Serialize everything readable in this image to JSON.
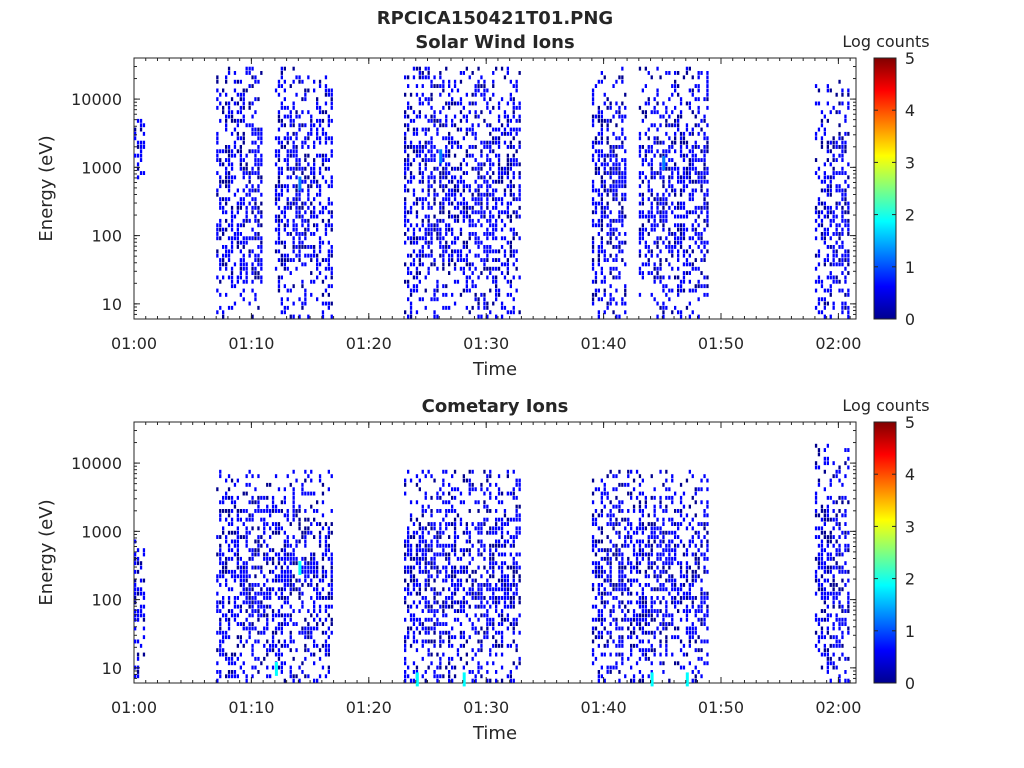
{
  "figure_title": "RPCICA150421T01.PNG",
  "chart_data": [
    {
      "type": "heatmap",
      "title": "Solar Wind Ions",
      "xlabel": "Time",
      "ylabel": "Energy (eV)",
      "x_range": [
        "01:00",
        "02:01"
      ],
      "x_ticks": [
        "01:00",
        "01:10",
        "01:20",
        "01:30",
        "01:40",
        "01:50",
        "02:00"
      ],
      "y_scale": "log",
      "y_range": [
        6,
        40000
      ],
      "y_ticks": [
        "10",
        "100",
        "1000",
        "10000"
      ],
      "colorbar": {
        "label": "Log counts",
        "min": 0,
        "max": 5,
        "ticks": [
          "0",
          "1",
          "2",
          "3",
          "4",
          "5"
        ],
        "colormap": "jet"
      },
      "colormap_colors": [
        "#00008f",
        "#0000ff",
        "#0080ff",
        "#00ffff",
        "#80ff80",
        "#ffff00",
        "#ff8000",
        "#ff0000",
        "#800000"
      ],
      "activity_intervals": [
        {
          "start": "01:00",
          "end": "01:01",
          "energy_range_eV": [
            600,
            5000
          ]
        },
        {
          "start": "01:07",
          "end": "01:11",
          "energy_range_eV": [
            6,
            30000
          ]
        },
        {
          "start": "01:12",
          "end": "01:17",
          "energy_range_eV": [
            6,
            30000
          ]
        },
        {
          "start": "01:23",
          "end": "01:33",
          "energy_range_eV": [
            6,
            30000
          ]
        },
        {
          "start": "01:39",
          "end": "01:42",
          "energy_range_eV": [
            6,
            30000
          ]
        },
        {
          "start": "01:43",
          "end": "01:49",
          "energy_range_eV": [
            6,
            30000
          ]
        },
        {
          "start": "01:58",
          "end": "02:01",
          "energy_range_eV": [
            6,
            20000
          ]
        }
      ],
      "peak_features": [
        {
          "time": "01:14",
          "energy_eV": 600,
          "log_counts": 1.4
        },
        {
          "time": "01:26",
          "energy_eV": 1500,
          "log_counts": 1.5
        },
        {
          "time": "01:45",
          "energy_eV": 1200,
          "log_counts": 1.3
        }
      ]
    },
    {
      "type": "heatmap",
      "title": "Cometary Ions",
      "xlabel": "Time",
      "ylabel": "Energy (eV)",
      "x_range": [
        "01:00",
        "02:01"
      ],
      "x_ticks": [
        "01:00",
        "01:10",
        "01:20",
        "01:30",
        "01:40",
        "01:50",
        "02:00"
      ],
      "y_scale": "log",
      "y_range": [
        6,
        40000
      ],
      "y_ticks": [
        "10",
        "100",
        "1000",
        "10000"
      ],
      "colorbar": {
        "label": "Log counts",
        "min": 0,
        "max": 5,
        "ticks": [
          "0",
          "1",
          "2",
          "3",
          "4",
          "5"
        ],
        "colormap": "jet"
      },
      "colormap_colors": [
        "#00008f",
        "#0000ff",
        "#0080ff",
        "#00ffff",
        "#80ff80",
        "#ffff00",
        "#ff8000",
        "#ff0000",
        "#800000"
      ],
      "activity_intervals": [
        {
          "start": "01:00",
          "end": "01:01",
          "energy_range_eV": [
            6,
            800
          ]
        },
        {
          "start": "01:07",
          "end": "01:17",
          "energy_range_eV": [
            6,
            8000
          ]
        },
        {
          "start": "01:23",
          "end": "01:33",
          "energy_range_eV": [
            6,
            8000
          ]
        },
        {
          "start": "01:39",
          "end": "01:49",
          "energy_range_eV": [
            6,
            8000
          ]
        },
        {
          "start": "01:58",
          "end": "02:01",
          "energy_range_eV": [
            6,
            20000
          ]
        }
      ],
      "peak_features": [
        {
          "time": "01:12",
          "energy_eV": 10,
          "log_counts": 2.0
        },
        {
          "time": "01:14",
          "energy_eV": 300,
          "log_counts": 1.6
        },
        {
          "time": "01:24",
          "energy_eV": 7,
          "log_counts": 2.0
        },
        {
          "time": "01:28",
          "energy_eV": 7,
          "log_counts": 1.6
        },
        {
          "time": "01:44",
          "energy_eV": 7,
          "log_counts": 1.8
        },
        {
          "time": "01:47",
          "energy_eV": 7,
          "log_counts": 1.8
        }
      ]
    }
  ]
}
